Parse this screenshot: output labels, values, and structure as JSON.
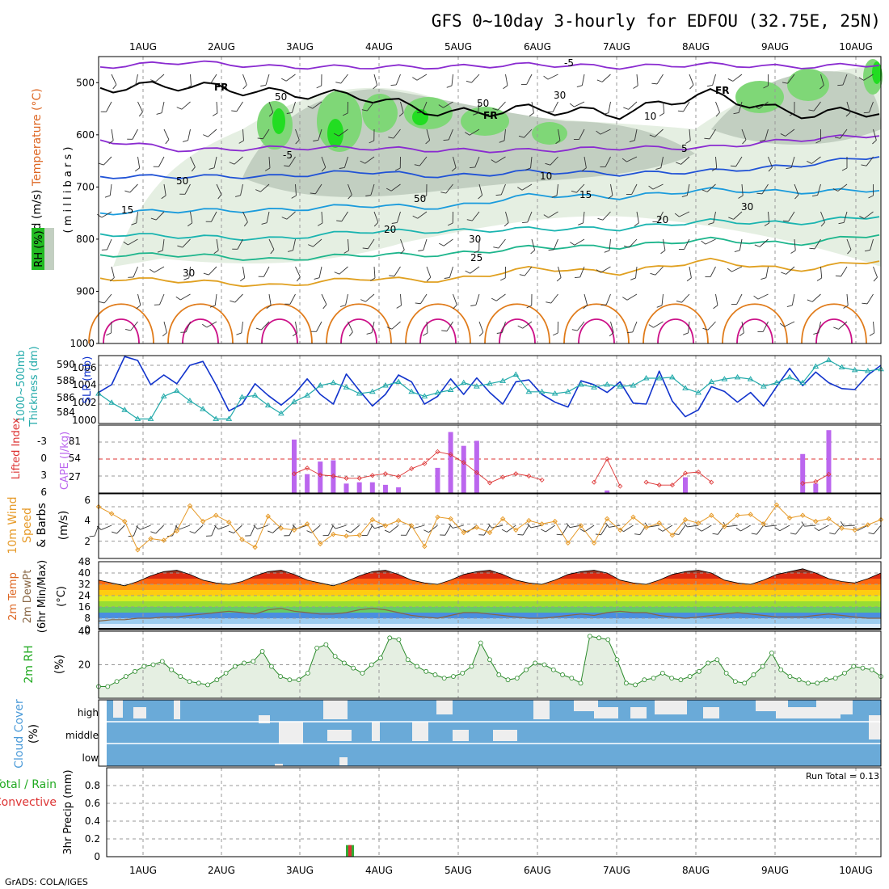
{
  "title": "GFS 0~10day 3-hourly for EDFOU (32.75E, 25N)",
  "footer": "GrADS: COLA/IGES",
  "run_total_label": "Run Total = 0.13",
  "date_labels": [
    "1AUG",
    "2AUG",
    "3AUG",
    "4AUG",
    "5AUG",
    "6AUG",
    "7AUG",
    "8AUG",
    "9AUG",
    "10AUG"
  ],
  "colors": {
    "rh_green": "#22bb22",
    "temp_orange": "#ff8800",
    "cloud_blue": "#6aaad8",
    "precip_red": "#dd3333",
    "slp_blue": "#1133cc",
    "thick_cyan": "#22aaaa",
    "cape_purple": "#bb66ee",
    "wind_orange": "#e69a28"
  },
  "panel_labels": {
    "upper": [
      "Wind (m/s)",
      "Temperature (°C)",
      "RH (%)",
      "( m i l l i b a r s )"
    ],
    "slp": [
      "1000~500mb",
      "Thickness (dm)",
      "SLP (mb)"
    ],
    "cape": [
      "Lifted Index",
      "CAPE (J/kg)"
    ],
    "wind10": [
      "10m Wind",
      "Speed",
      "& Barbs",
      "(m/s)"
    ],
    "temp2m": [
      "2m Temp",
      "2m DewPt",
      "(6hr Min/Max)",
      "(°C)"
    ],
    "rh2m": [
      "2m RH",
      "(%)"
    ],
    "cloud": [
      "Cloud Cover",
      "(%)"
    ],
    "precip": [
      "Total / Rain",
      "Convective",
      "3hr Precip (mm)"
    ]
  },
  "contour_labels": {
    "fr": [
      "FR",
      "FR",
      "FR"
    ],
    "temp": [
      "-5",
      "-5",
      "5",
      "10",
      "15",
      "15",
      "20",
      "20",
      "25",
      "30"
    ],
    "rh": [
      "50",
      "50",
      "30",
      "10",
      "50",
      "50",
      "30",
      "30"
    ]
  },
  "chart_data": [
    {
      "type": "line",
      "title": "",
      "xlabel": "",
      "ylabel": "millibars",
      "x": [
        "1AUG",
        "2AUG",
        "3AUG",
        "4AUG",
        "5AUG",
        "6AUG",
        "7AUG",
        "8AUG",
        "9AUG",
        "10AUG"
      ],
      "yticks": [
        "500",
        "600",
        "700",
        "800",
        "900",
        "1000"
      ],
      "ylim": [
        1000,
        450
      ],
      "series": [
        {
          "name": "FR",
          "values": [
            510,
            505,
            520,
            525,
            560,
            550,
            560,
            520,
            560,
            555
          ]
        },
        {
          "name": "-5",
          "values": [
            470,
            460,
            470,
            470,
            470,
            465,
            470,
            465,
            470,
            465
          ]
        },
        {
          "name": "5",
          "values": [
            610,
            630,
            625,
            625,
            630,
            630,
            625,
            625,
            610,
            600
          ]
        },
        {
          "name": "10",
          "values": [
            680,
            680,
            680,
            670,
            680,
            670,
            675,
            670,
            660,
            640
          ]
        },
        {
          "name": "15",
          "values": [
            750,
            745,
            745,
            735,
            740,
            715,
            720,
            705,
            710,
            705
          ]
        },
        {
          "name": "20",
          "values": [
            790,
            795,
            800,
            785,
            785,
            780,
            780,
            765,
            770,
            755
          ]
        },
        {
          "name": "25",
          "values": [
            830,
            830,
            840,
            830,
            830,
            815,
            815,
            800,
            810,
            790
          ]
        },
        {
          "name": "30",
          "values": [
            875,
            880,
            890,
            875,
            880,
            855,
            865,
            840,
            860,
            840
          ]
        }
      ]
    },
    {
      "type": "line",
      "title": "",
      "xlabel": "",
      "ylabel": "1000~500mb Thickness (dm) / SLP (mb)",
      "left_ticks": [
        "584",
        "586",
        "588",
        "590"
      ],
      "right_ticks": [
        "1006",
        "1004",
        "1002",
        "1000"
      ],
      "series": [
        {
          "name": "SLP (mb)",
          "axis": "right",
          "ylim": [
            1000,
            1007
          ],
          "values": [
            1003.2,
            1004.0,
            1006.9,
            1006.5,
            1004.0,
            1005.0,
            1004.1,
            1006.0,
            1006.4,
            1004.0,
            1001.3,
            1002.0,
            1004.1,
            1002.9,
            1001.9,
            1003.0,
            1004.6,
            1003.0,
            1002.0,
            1005.1,
            1003.4,
            1001.8,
            1003.0,
            1005.0,
            1004.3,
            1002.0,
            1002.8,
            1004.6,
            1003.0,
            1004.7,
            1003.2,
            1002.0,
            1004.3,
            1004.5,
            1003.0,
            1002.2,
            1001.7,
            1004.4,
            1004.0,
            1003.2,
            1004.3,
            1002.1,
            1002.0,
            1005.4,
            1002.3,
            1000.7,
            1001.4,
            1003.8,
            1003.3,
            1002.2,
            1003.2,
            1001.8,
            1003.8,
            1005.7,
            1003.9,
            1005.3,
            1004.2,
            1003.6,
            1003.5,
            1005.0,
            1006.0
          ]
        },
        {
          "name": "1000~500mb Thickness (dm)",
          "axis": "left",
          "ylim": [
            583.5,
            591
          ],
          "values": [
            586.8,
            585.8,
            585.0,
            584.0,
            584.0,
            586.5,
            587.1,
            586.0,
            585.1,
            584.0,
            584.0,
            586.4,
            586.6,
            585.5,
            584.6,
            585.9,
            586.6,
            587.7,
            588.0,
            587.5,
            586.8,
            587.0,
            587.7,
            588.1,
            587.0,
            586.5,
            586.9,
            587.2,
            588.0,
            587.6,
            587.9,
            588.2,
            588.9,
            587.0,
            587.0,
            586.8,
            587.0,
            587.8,
            587.5,
            587.8,
            587.6,
            587.7,
            588.5,
            588.5,
            588.6,
            587.4,
            586.9,
            588.1,
            588.4,
            588.6,
            588.4,
            587.6,
            588.0,
            588.6,
            588.0,
            589.8,
            590.5,
            589.7,
            589.4,
            589.3,
            589.5
          ]
        }
      ]
    },
    {
      "type": "bar",
      "title": "",
      "xlabel": "",
      "ylabel": "CAPE (J/kg)",
      "ylim": [
        0,
        108
      ],
      "yticks": [
        "27",
        "54",
        "81"
      ],
      "li_ticks": [
        "-3",
        "0",
        "3",
        "6"
      ],
      "li_ylim": [
        -6,
        6
      ],
      "values": [
        0,
        0,
        0,
        0,
        0,
        0,
        0,
        0,
        0,
        0,
        0,
        0,
        0,
        0,
        0,
        85,
        30,
        50,
        52,
        15,
        17,
        17,
        13,
        9,
        0,
        0,
        40,
        97,
        75,
        83,
        0,
        0,
        0,
        0,
        0,
        0,
        0,
        0,
        0,
        4,
        0,
        0,
        0,
        0,
        0,
        25,
        0,
        0,
        0,
        0,
        0,
        0,
        0,
        0,
        62,
        15,
        100,
        0,
        0,
        0,
        0
      ],
      "lifted_index": [
        null,
        null,
        null,
        null,
        null,
        null,
        null,
        null,
        null,
        null,
        null,
        null,
        null,
        null,
        null,
        2.6,
        1.6,
        2.8,
        3.0,
        3.4,
        3.4,
        2.9,
        2.6,
        3.1,
        1.7,
        0.8,
        -1.3,
        -0.8,
        0.6,
        2.4,
        4.2,
        3.2,
        2.6,
        3.0,
        3.7,
        null,
        null,
        null,
        4.1,
        0.0,
        4.8,
        null,
        4.1,
        4.6,
        4.6,
        2.5,
        2.3,
        4.1,
        null,
        null,
        null,
        null,
        null,
        null,
        4.3,
        4.0,
        2.7,
        null,
        null,
        null,
        null
      ]
    },
    {
      "type": "line",
      "title": "",
      "xlabel": "",
      "ylabel": "10m Wind Speed & Barbs (m/s)",
      "ylim": [
        0,
        7.5
      ],
      "yticks": [
        "2",
        "4",
        "6"
      ],
      "values": [
        6.0,
        5.2,
        4.3,
        1.0,
        2.3,
        2.1,
        3.2,
        6.1,
        4.3,
        5.0,
        4.2,
        2.2,
        1.3,
        4.9,
        3.5,
        3.3,
        4.0,
        1.7,
        2.8,
        2.6,
        2.7,
        4.5,
        3.8,
        4.4,
        3.8,
        1.4,
        4.8,
        4.6,
        3.0,
        3.6,
        3.0,
        4.6,
        3.3,
        4.4,
        4.0,
        4.3,
        1.8,
        3.8,
        1.8,
        4.6,
        3.3,
        4.8,
        3.6,
        4.1,
        2.7,
        4.5,
        4.1,
        5.0,
        3.7,
        5.0,
        5.1,
        4.0,
        6.2,
        4.7,
        5.0,
        4.3,
        4.6,
        3.5,
        3.3,
        3.9,
        4.5
      ]
    },
    {
      "type": "area",
      "title": "",
      "xlabel": "",
      "ylabel": "2m Temp / 2m DewPt (°C)",
      "ylim": [
        0,
        48
      ],
      "yticks": [
        "0",
        "8",
        "16",
        "24",
        "32",
        "40",
        "48"
      ],
      "series": [
        {
          "name": "2m Temp",
          "values": [
            35,
            33,
            31,
            34,
            38,
            41,
            42,
            39,
            35,
            33,
            32,
            34,
            38,
            41,
            42,
            39,
            35,
            33,
            31,
            34,
            38,
            41,
            42,
            39,
            35,
            33,
            32,
            35,
            39,
            41,
            42,
            39,
            35,
            33,
            32,
            35,
            39,
            41,
            42,
            40,
            35,
            33,
            32,
            35,
            39,
            41,
            42,
            40,
            35,
            33,
            32,
            35,
            39,
            41,
            43,
            40,
            36,
            34,
            33,
            36,
            40
          ]
        },
        {
          "name": "2m DewPt",
          "values": [
            6,
            7,
            7,
            8,
            8,
            9,
            9,
            10,
            11,
            12,
            13,
            12,
            11,
            14,
            15,
            13,
            12,
            11,
            11,
            12,
            14,
            15,
            14,
            12,
            10,
            9,
            8,
            10,
            12,
            12,
            11,
            10,
            9,
            8,
            8,
            9,
            10,
            11,
            10,
            12,
            13,
            12,
            12,
            10,
            9,
            8,
            9,
            10,
            11,
            12,
            11,
            10,
            9,
            9,
            9,
            10,
            11,
            10,
            9,
            8,
            8
          ]
        }
      ]
    },
    {
      "type": "area",
      "title": "",
      "xlabel": "",
      "ylabel": "2m RH (%)",
      "ylim": [
        0,
        40
      ],
      "yticks": [
        "20",
        "40"
      ],
      "values": [
        7,
        7,
        10,
        13,
        16,
        19,
        20,
        22,
        17,
        13,
        10,
        9,
        8,
        11,
        15,
        19,
        21,
        22,
        28,
        19,
        13,
        11,
        11,
        15,
        30,
        32,
        25,
        21,
        18,
        15,
        20,
        24,
        36,
        35,
        23,
        19,
        16,
        14,
        12,
        13,
        15,
        19,
        33,
        23,
        14,
        11,
        12,
        17,
        21,
        20,
        17,
        14,
        12,
        9,
        37,
        36,
        35,
        23,
        9,
        8,
        11
      ],
      "tail_values": [
        12,
        15,
        12,
        11,
        13,
        16,
        21,
        23,
        15,
        10,
        9,
        14,
        19,
        27,
        17,
        13,
        11,
        9,
        9,
        11,
        12,
        15,
        19,
        18,
        17,
        13
      ]
    },
    {
      "type": "heatmap",
      "title": "",
      "xlabel": "",
      "ylabel": "Cloud Cover (%)",
      "rows": [
        "high",
        "middle",
        "low"
      ]
    },
    {
      "type": "bar",
      "title": "",
      "xlabel": "",
      "ylabel": "3hr Precip (mm)",
      "ylim": [
        0,
        1
      ],
      "yticks": [
        "0",
        "0.2",
        "0.4",
        "0.6",
        "0.8"
      ],
      "series": [
        {
          "name": "Total / Rain",
          "values": [
            {
              "x": "3AUG 15Z",
              "v": 0.13
            }
          ]
        },
        {
          "name": "Convective",
          "values": [
            {
              "x": "3AUG 15Z",
              "v": 0.13
            }
          ]
        }
      ]
    }
  ]
}
